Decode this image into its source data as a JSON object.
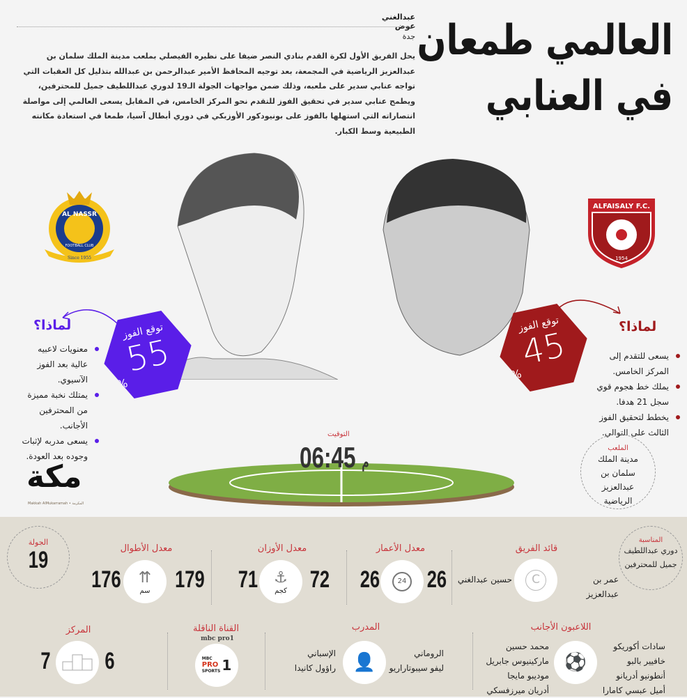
{
  "header": {
    "title_line1": "العالمي طمعان",
    "title_line2": "في العنابي",
    "author": "عبدالغني عوض",
    "city": "جدة",
    "body": "يحل الفريق الأول لكرة القدم بنادي النصر ضيفا على نظيره الفيصلي بملعب مدينة الملك سلمان بن عبدالعزيز الرياضية في المجمعة، بعد توجيه المحافظ الأمير عبدالرحمن بن عبدالله بتذليل كل العقبات التي تواجه عنابي سدير على ملعبه، وذلك ضمن مواجهات الجولة الـ19 لدوري عبداللطيف جميل للمحترفين، ويطمح عنابي سدير في تحقيق الفوز للتقدم نحو المركز الخامس، في المقابل يسعى العالمي إلى مواصلة انتصاراته التي استهلها بالفوز على بونيودكور الأوزبكي في دوري أبطال آسيا، طمعا في استعادة مكانته الطبيعية وسط الكبار."
  },
  "nassr": {
    "logo_text": "AL NASSR",
    "logo_sub": "FOOTBALL CLUB",
    "logo_since": "Since 1955",
    "color": "#5a1ee8",
    "win_label": "توقع الفوز",
    "win_pct": 55,
    "pct_sign": "%",
    "why": "لماذا؟",
    "reasons": [
      "معنويات لاعبيه عالية بعد الفوز الآسيوي.",
      "يمتلك نخبة مميزة من المحترفين الأجانب.",
      "يسعى مدربه لإثبات وجوده بعد العودة."
    ]
  },
  "faisaly": {
    "logo_text": "ALFAISALY F.C.",
    "logo_year": "1954",
    "color": "#a01a1c",
    "win_label": "توقع الفوز",
    "win_pct": 45,
    "pct_sign": "%",
    "why": "لماذا؟",
    "reasons": [
      "يسعى للتقدم إلى المركز الخامس.",
      "يملك خط هجوم قوي سجل 21 هدفا.",
      "يخطط لتحقيق الفوز الثالث على التوالي."
    ]
  },
  "match": {
    "time_label": "التوقيت",
    "time": "06:45",
    "ampm": "م",
    "stadium_label": "الملعب",
    "stadium": "مدينة الملك سلمان بن عبدالعزيز الرياضية"
  },
  "brand": {
    "logo": "مكة",
    "sub": "Makkah AlMukarramah • المكرمة"
  },
  "stats": {
    "occasion": {
      "label": "المناسبة",
      "value": "دوري عبداللطيف جميل للمحترفين"
    },
    "captain": {
      "label": "قائد الفريق",
      "right": "عمر بن عبدالعزيز",
      "left": "حسين عبدالغني",
      "icon": "captain-c-icon"
    },
    "age": {
      "label": "معدل الأعمار",
      "right": "26",
      "left": "26",
      "icon": "clock-24-icon"
    },
    "weight": {
      "label": "معدل الأوزان",
      "right": "72",
      "left": "71",
      "unit": "كجم",
      "icon": "scale-hook-icon"
    },
    "height": {
      "label": "معدل الأطوال",
      "right": "179",
      "left": "176",
      "unit": "سم",
      "icon": "height-arrows-icon"
    },
    "round": {
      "label": "الجولة",
      "value": "19"
    },
    "foreign": {
      "label": "اللاعبون الأجانب",
      "right": [
        "سادات أكوريكو",
        "خافيير بالبو",
        "أنطونيو أدريانو",
        "أميل عبسي كامارا"
      ],
      "left": [
        "محمد حسين",
        "ماركينيوس جابريل",
        "موديبو مايجا",
        "أدريان ميرزفسكي"
      ]
    },
    "coach": {
      "label": "المدرب",
      "right": [
        "الروماني",
        "ليفو سيبوتاراريو"
      ],
      "left": [
        "الإسباني",
        "راؤول كانيدا"
      ]
    },
    "channel": {
      "label": "القناة الناقلة",
      "name": "mbc pro1",
      "logo_top": "MBC",
      "logo_mid": "PRO",
      "logo_bot": "SPORTS",
      "logo_num": "1"
    },
    "position": {
      "label": "المركز",
      "right": "6",
      "left": "7"
    }
  }
}
